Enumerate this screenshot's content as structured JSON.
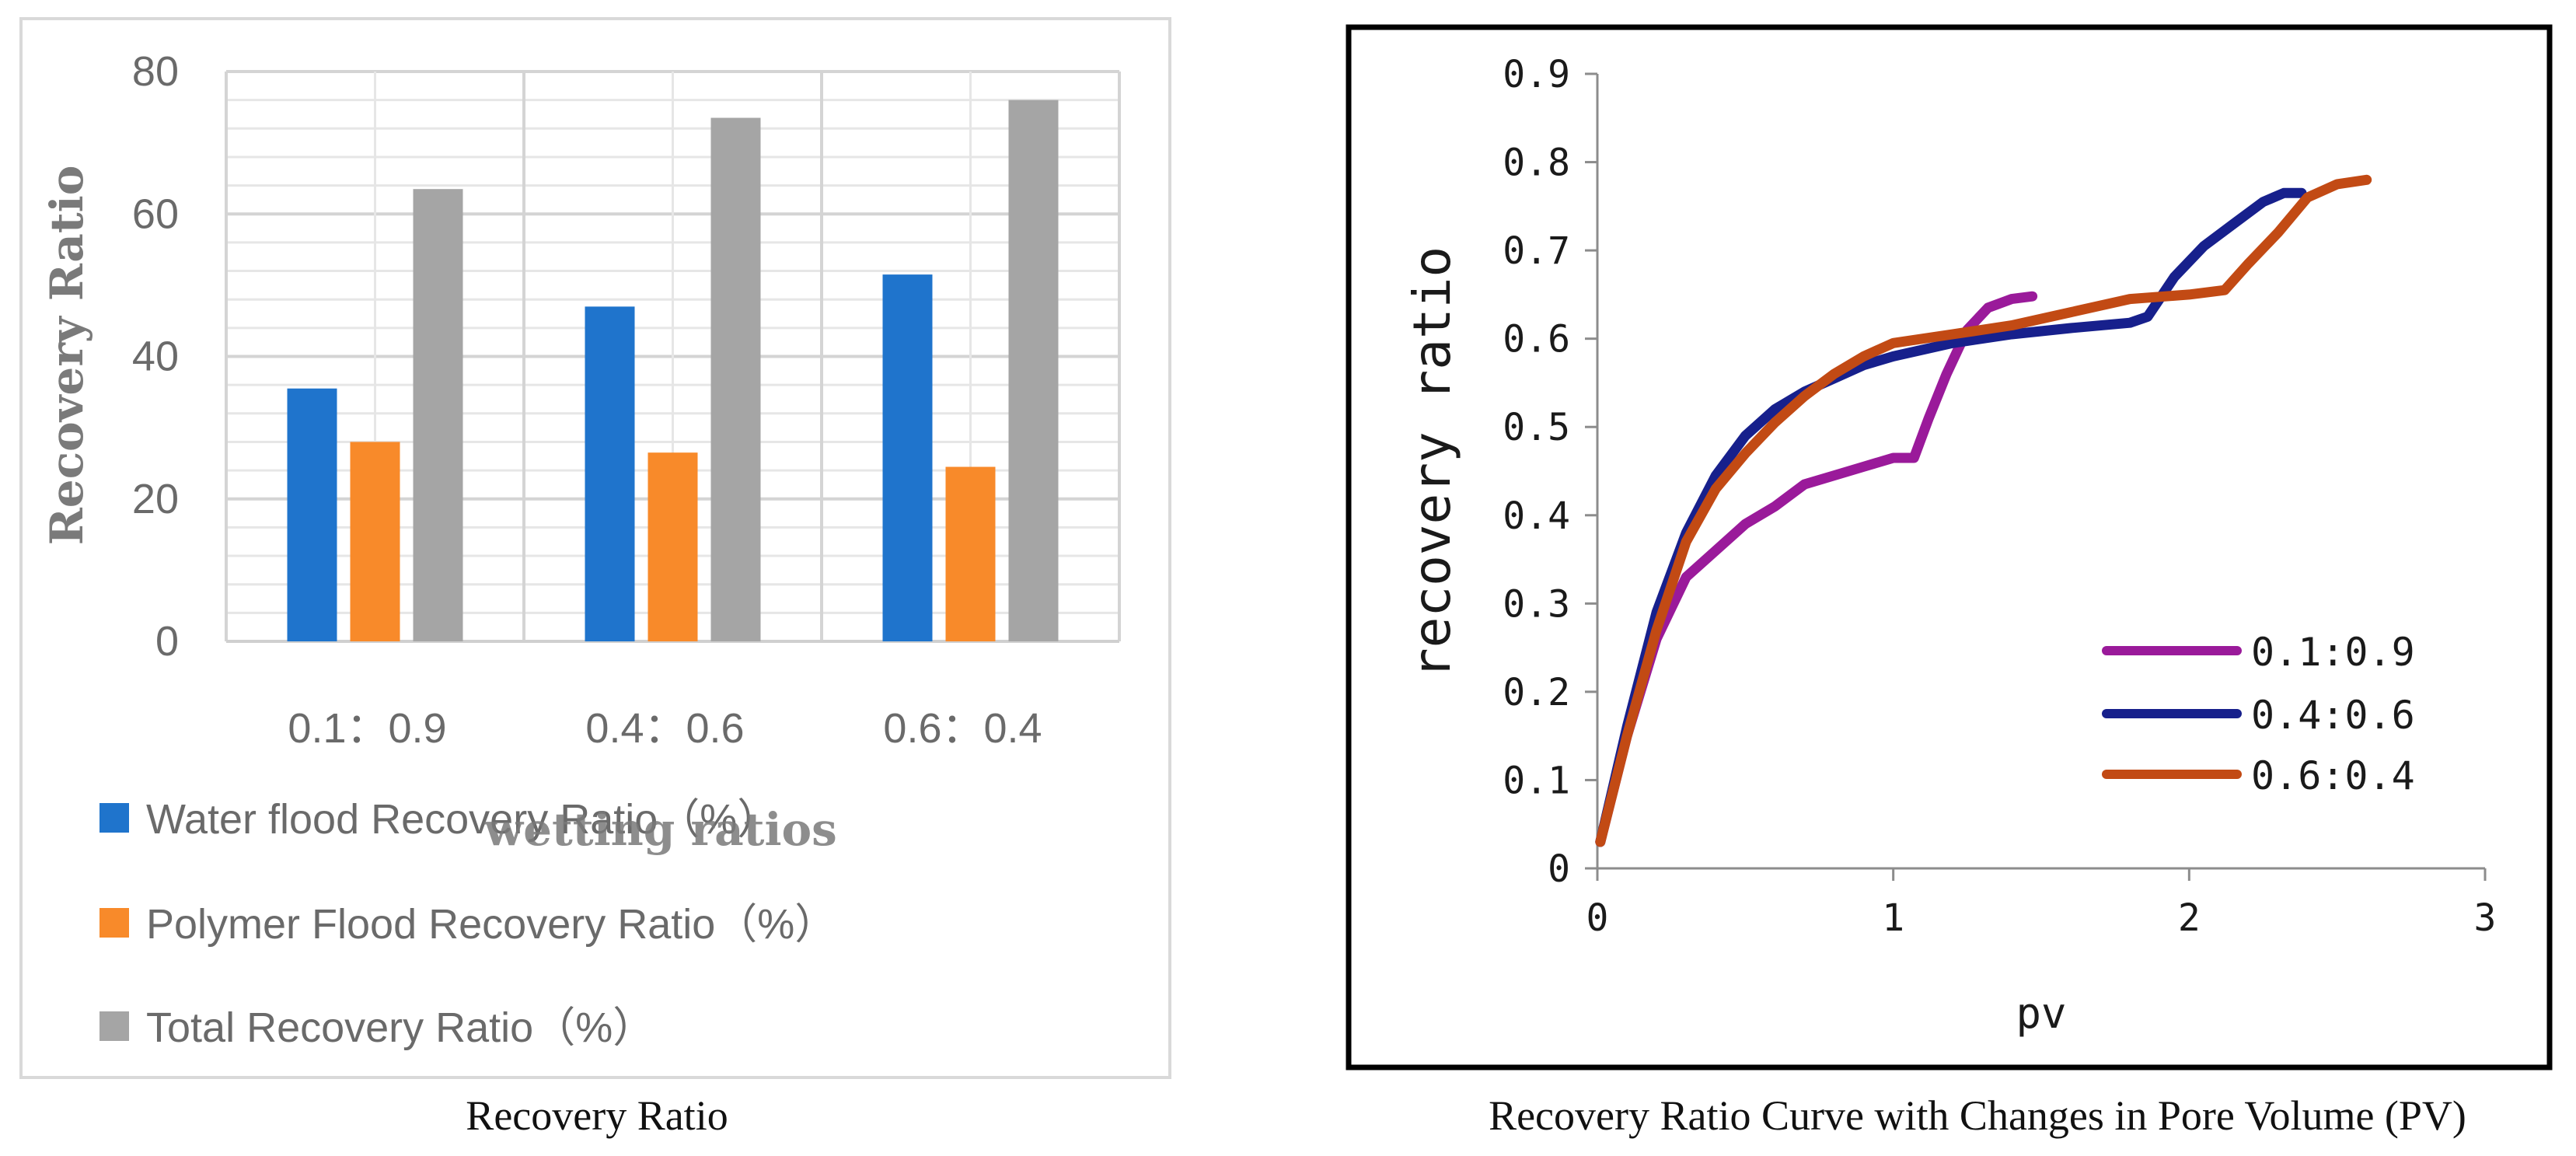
{
  "chart_data": [
    {
      "type": "bar",
      "title": "",
      "caption": "Recovery Ratio",
      "xlabel": "wetting ratios",
      "ylabel": "Recovery Ratio",
      "categories": [
        "0.1：0.9",
        "0.4：0.6",
        "0.6：0.4"
      ],
      "series": [
        {
          "name": "Water flood Recovery Ratio（%）",
          "color": "#1f74cc",
          "values": [
            35.5,
            47,
            51.5
          ]
        },
        {
          "name": "Polymer Flood Recovery Ratio（%）",
          "color": "#f88a2a",
          "values": [
            28,
            26.5,
            24.5
          ]
        },
        {
          "name": "Total Recovery Ratio（%）",
          "color": "#a5a5a5",
          "values": [
            63.5,
            73.5,
            76
          ]
        }
      ],
      "ylim": [
        0,
        80
      ],
      "yticks": [
        "0",
        "20",
        "40",
        "60",
        "80"
      ],
      "grid": true,
      "legend": "bottom"
    },
    {
      "type": "line",
      "title": "",
      "caption": "Recovery Ratio Curve with Changes in Pore Volume (PV)",
      "xlabel": "pv",
      "ylabel": "recovery ratio",
      "xlim": [
        0,
        3
      ],
      "ylim": [
        0,
        0.9
      ],
      "xticks": [
        "0",
        "1",
        "2",
        "3"
      ],
      "yticks": [
        "0",
        "0.1",
        "0.2",
        "0.3",
        "0.4",
        "0.5",
        "0.6",
        "0.7",
        "0.8",
        "0.9"
      ],
      "grid": false,
      "legend": "bottom-right",
      "series": [
        {
          "name": "0.1:0.9",
          "color": "#9a1a9a",
          "x": [
            0.01,
            0.1,
            0.2,
            0.3,
            0.4,
            0.5,
            0.6,
            0.7,
            0.8,
            0.9,
            1.0,
            1.07,
            1.12,
            1.18,
            1.25,
            1.32,
            1.4,
            1.47
          ],
          "y": [
            0.03,
            0.15,
            0.26,
            0.33,
            0.36,
            0.39,
            0.41,
            0.435,
            0.445,
            0.455,
            0.465,
            0.465,
            0.51,
            0.56,
            0.61,
            0.635,
            0.645,
            0.648
          ]
        },
        {
          "name": "0.4:0.6",
          "color": "#17208c",
          "x": [
            0.01,
            0.1,
            0.2,
            0.3,
            0.4,
            0.5,
            0.6,
            0.7,
            0.8,
            0.9,
            1.0,
            1.2,
            1.4,
            1.6,
            1.8,
            1.86,
            1.95,
            2.05,
            2.15,
            2.25,
            2.32,
            2.38
          ],
          "y": [
            0.03,
            0.16,
            0.29,
            0.38,
            0.445,
            0.49,
            0.52,
            0.54,
            0.555,
            0.57,
            0.58,
            0.595,
            0.605,
            0.612,
            0.618,
            0.625,
            0.67,
            0.705,
            0.73,
            0.755,
            0.765,
            0.765
          ]
        },
        {
          "name": "0.6:0.4",
          "color": "#c24a14",
          "x": [
            0.01,
            0.1,
            0.2,
            0.3,
            0.4,
            0.5,
            0.6,
            0.7,
            0.8,
            0.9,
            1.0,
            1.2,
            1.4,
            1.6,
            1.8,
            2.0,
            2.12,
            2.2,
            2.3,
            2.4,
            2.5,
            2.6
          ],
          "y": [
            0.03,
            0.15,
            0.27,
            0.37,
            0.43,
            0.47,
            0.505,
            0.535,
            0.56,
            0.58,
            0.595,
            0.605,
            0.615,
            0.63,
            0.645,
            0.65,
            0.655,
            0.685,
            0.72,
            0.76,
            0.775,
            0.78
          ]
        }
      ]
    }
  ]
}
